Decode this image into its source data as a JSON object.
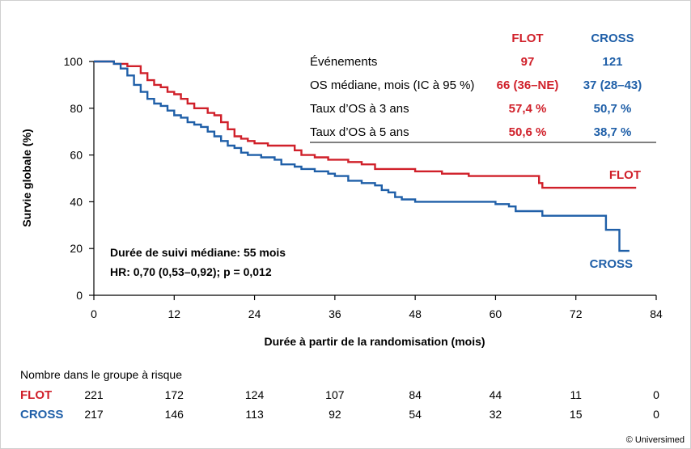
{
  "chart_data": {
    "type": "line",
    "ylabel": "Survie globale (%)",
    "xlabel": "Durée à partir de la randomisation (mois)",
    "xlim": [
      0,
      84
    ],
    "ylim": [
      0,
      100
    ],
    "xticks": [
      0,
      12,
      24,
      36,
      48,
      60,
      72,
      84
    ],
    "yticks": [
      0,
      20,
      40,
      60,
      80,
      100
    ],
    "grid": false,
    "colors": {
      "FLOT": "#d0202a",
      "CROSS": "#1f5fa8"
    },
    "series": [
      {
        "name": "FLOT",
        "points": [
          [
            0,
            100
          ],
          [
            2,
            100
          ],
          [
            3,
            99
          ],
          [
            5,
            98
          ],
          [
            7,
            95
          ],
          [
            8,
            92
          ],
          [
            9,
            90
          ],
          [
            10,
            89
          ],
          [
            11,
            87
          ],
          [
            12,
            86
          ],
          [
            13,
            84
          ],
          [
            14,
            82
          ],
          [
            15,
            80
          ],
          [
            17,
            78
          ],
          [
            18,
            77
          ],
          [
            19,
            74
          ],
          [
            20,
            71
          ],
          [
            21,
            68
          ],
          [
            22,
            67
          ],
          [
            23,
            66
          ],
          [
            24,
            65
          ],
          [
            26,
            64
          ],
          [
            28,
            64
          ],
          [
            30,
            62
          ],
          [
            31,
            60
          ],
          [
            33,
            59
          ],
          [
            35,
            58
          ],
          [
            38,
            57
          ],
          [
            40,
            56
          ],
          [
            42,
            54
          ],
          [
            44,
            54
          ],
          [
            46,
            54
          ],
          [
            48,
            53
          ],
          [
            52,
            52
          ],
          [
            56,
            51
          ],
          [
            60,
            51
          ],
          [
            62,
            51
          ],
          [
            66,
            51
          ],
          [
            66.5,
            48
          ],
          [
            67,
            46
          ],
          [
            72,
            46
          ],
          [
            76,
            46
          ],
          [
            78,
            46
          ],
          [
            81,
            46
          ]
        ]
      },
      {
        "name": "CROSS",
        "points": [
          [
            0,
            100
          ],
          [
            1,
            100
          ],
          [
            3,
            99
          ],
          [
            4,
            97
          ],
          [
            5,
            94
          ],
          [
            6,
            90
          ],
          [
            7,
            87
          ],
          [
            8,
            84
          ],
          [
            9,
            82
          ],
          [
            10,
            81
          ],
          [
            11,
            79
          ],
          [
            12,
            77
          ],
          [
            13,
            76
          ],
          [
            14,
            74
          ],
          [
            15,
            73
          ],
          [
            16,
            72
          ],
          [
            17,
            70
          ],
          [
            18,
            68
          ],
          [
            19,
            66
          ],
          [
            20,
            64
          ],
          [
            21,
            63
          ],
          [
            22,
            61
          ],
          [
            23,
            60
          ],
          [
            25,
            59
          ],
          [
            27,
            58
          ],
          [
            28,
            56
          ],
          [
            30,
            55
          ],
          [
            31,
            54
          ],
          [
            33,
            53
          ],
          [
            35,
            52
          ],
          [
            36,
            51
          ],
          [
            38,
            49
          ],
          [
            40,
            48
          ],
          [
            42,
            47
          ],
          [
            43,
            45
          ],
          [
            44,
            44
          ],
          [
            45,
            42
          ],
          [
            46,
            41
          ],
          [
            48,
            40
          ],
          [
            50,
            40
          ],
          [
            54,
            40
          ],
          [
            58,
            40
          ],
          [
            60,
            39
          ],
          [
            62,
            38
          ],
          [
            63,
            36
          ],
          [
            65,
            36
          ],
          [
            67,
            34
          ],
          [
            72,
            34
          ],
          [
            76,
            34
          ],
          [
            76.5,
            28
          ],
          [
            78,
            28
          ],
          [
            78.5,
            19
          ],
          [
            80,
            19
          ]
        ]
      }
    ]
  },
  "stats_table": {
    "headers": [
      "FLOT",
      "CROSS"
    ],
    "rows": [
      {
        "label": "Événements",
        "flot": "97",
        "cross": "121"
      },
      {
        "label": "OS médiane, mois (IC à 95 %)",
        "flot": "66 (36–NE)",
        "cross": "37 (28–43)"
      },
      {
        "label": "Taux d’OS à 3 ans",
        "flot": "57,4 %",
        "cross": "50,7 %"
      },
      {
        "label": "Taux d’OS à 5 ans",
        "flot": "50,6 %",
        "cross": "38,7 %"
      }
    ]
  },
  "annotations": {
    "median_followup": "Durée de suivi médiane: 55 mois",
    "hr": "HR: 0,70 (0,53–0,92); p = 0,012",
    "flot_label": "FLOT",
    "cross_label": "CROSS"
  },
  "risk_table": {
    "title": "Nombre dans le groupe à risque",
    "timepoints": [
      0,
      12,
      24,
      36,
      48,
      60,
      72,
      84
    ],
    "rows": [
      {
        "name": "FLOT",
        "values": [
          "221",
          "172",
          "124",
          "107",
          "84",
          "44",
          "11",
          "0"
        ]
      },
      {
        "name": "CROSS",
        "values": [
          "217",
          "146",
          "113",
          "92",
          "54",
          "32",
          "15",
          "0"
        ]
      }
    ]
  },
  "copyright": "© Universimed"
}
